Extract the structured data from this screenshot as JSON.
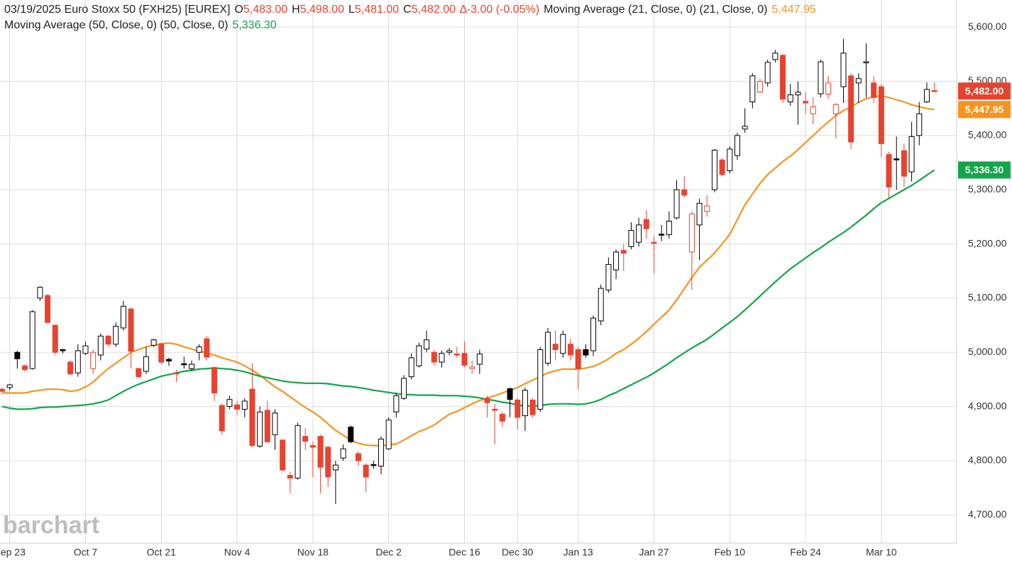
{
  "header": {
    "symbol": "03/19/2025 Euro Stoxx 50 (FXH25) [EUREX]",
    "ohlc": [
      {
        "label": "O",
        "value": "5,483.00"
      },
      {
        "label": "H",
        "value": "5,498.00"
      },
      {
        "label": "L",
        "value": "5,481.00"
      },
      {
        "label": "C",
        "value": "5,482.00"
      }
    ],
    "change": "∆-3.00 (-0.05%)",
    "ma21": {
      "label": "Moving Average (21, Close, 0)  (21, Close, 0)",
      "value": "5,447.95"
    },
    "ma50": {
      "label": "Moving Average (50, Close, 0)  (50, Close, 0)",
      "value": "5,336.30"
    }
  },
  "watermark": "barchart",
  "chart_data": {
    "type": "candlestick",
    "categories": [
      null,
      "Sep 23",
      null,
      null,
      null,
      null,
      null,
      null,
      null,
      null,
      null,
      "Oct 7",
      null,
      null,
      null,
      null,
      null,
      null,
      null,
      null,
      null,
      "Oct 21",
      null,
      null,
      null,
      null,
      null,
      null,
      null,
      null,
      null,
      "Nov 4",
      null,
      null,
      null,
      null,
      null,
      null,
      null,
      null,
      null,
      "Nov 18",
      null,
      null,
      null,
      null,
      null,
      null,
      null,
      null,
      null,
      "Dec 2",
      null,
      null,
      null,
      null,
      null,
      null,
      null,
      null,
      null,
      "Dec 16",
      null,
      null,
      null,
      null,
      null,
      null,
      "Dec 30",
      null,
      null,
      null,
      null,
      null,
      null,
      null,
      "Jan 13",
      null,
      null,
      null,
      null,
      null,
      null,
      null,
      null,
      null,
      "Jan 27",
      null,
      null,
      null,
      null,
      null,
      null,
      null,
      null,
      null,
      "Feb 10",
      null,
      null,
      null,
      null,
      null,
      null,
      null,
      null,
      null,
      "Feb 24",
      null,
      null,
      null,
      null,
      null,
      null,
      null,
      null,
      null,
      "Mar 10",
      null,
      null,
      null,
      null,
      null,
      null,
      null
    ],
    "open": [
      4932,
      4935,
      5000,
      4975,
      4970,
      5100,
      5105,
      5050,
      5005,
      4982,
      4962,
      4998,
      4970,
      4995,
      5030,
      5015,
      5045,
      5080,
      4970,
      4965,
      5013,
      5015,
      4987,
      4962,
      4979,
      4970,
      5000,
      5025,
      4972,
      4902,
      4900,
      4903,
      4895,
      4932,
      4827,
      4893,
      4848,
      4838,
      4773,
      4768,
      4845,
      4828,
      4845,
      4825,
      4783,
      4805,
      4862,
      4813,
      4792,
      4793,
      4790,
      4822,
      4890,
      4915,
      4955,
      4975,
      5006,
      5000,
      4982,
      5000,
      4997,
      4998,
      4970,
      4978,
      4915,
      4895,
      4886,
      4933,
      4912,
      4883,
      4912,
      4895,
      4980,
      5015,
      4998,
      5015,
      5005,
      5005,
      5003,
      5058,
      5115,
      5152,
      5188,
      5195,
      5203,
      5245,
      5203,
      5218,
      5217,
      5248,
      5300,
      5185,
      5235,
      5260,
      5300,
      5355,
      5335,
      5363,
      5412,
      5462,
      5480,
      5497,
      5540,
      5548,
      5462,
      5475,
      5463,
      5440,
      5477,
      5476,
      5440,
      5490,
      5510,
      5497,
      5535,
      5497,
      5490,
      5365,
      5357,
      5372,
      5333,
      5400,
      5462,
      5483
    ],
    "high": [
      4935,
      4942,
      5003,
      4978,
      5078,
      5122,
      5107,
      5052,
      5006,
      4985,
      5015,
      5020,
      5005,
      5035,
      5032,
      5055,
      5095,
      5082,
      4972,
      5010,
      5025,
      5017,
      4990,
      4968,
      4992,
      4985,
      5015,
      5030,
      4974,
      4905,
      4920,
      4910,
      4915,
      4980,
      4900,
      4910,
      4895,
      4840,
      4780,
      4870,
      4860,
      4835,
      4848,
      4828,
      4800,
      4830,
      4865,
      4818,
      4795,
      4800,
      4845,
      4880,
      4925,
      4958,
      4998,
      5018,
      5040,
      5005,
      5003,
      5008,
      5010,
      5020,
      4985,
      5005,
      4920,
      4905,
      4890,
      4935,
      4915,
      4935,
      4915,
      5010,
      5045,
      5040,
      5040,
      5025,
      5010,
      5015,
      5068,
      5125,
      5175,
      5190,
      5200,
      5240,
      5248,
      5262,
      5215,
      5235,
      5260,
      5318,
      5325,
      5260,
      5283,
      5290,
      5375,
      5358,
      5380,
      5405,
      5450,
      5515,
      5505,
      5540,
      5558,
      5550,
      5495,
      5500,
      5480,
      5470,
      5540,
      5510,
      5460,
      5578,
      5515,
      5515,
      5570,
      5510,
      5495,
      5370,
      5398,
      5385,
      5425,
      5462,
      5498,
      5498
    ],
    "low": [
      4925,
      4930,
      4970,
      4965,
      4968,
      5095,
      5053,
      4995,
      4998,
      4958,
      4955,
      4995,
      4960,
      4985,
      5010,
      5010,
      5040,
      4970,
      4953,
      4960,
      5010,
      4978,
      4975,
      4945,
      4970,
      4965,
      4985,
      4985,
      4910,
      4848,
      4895,
      4885,
      4880,
      4825,
      4824,
      4833,
      4820,
      4780,
      4740,
      4765,
      4820,
      4770,
      4740,
      4752,
      4720,
      4800,
      4832,
      4790,
      4742,
      4785,
      4775,
      4820,
      4880,
      4912,
      4950,
      4972,
      5000,
      4975,
      4972,
      4995,
      4990,
      4972,
      4960,
      4960,
      4880,
      4830,
      4862,
      4880,
      4858,
      4855,
      4880,
      4890,
      4975,
      4985,
      4990,
      4985,
      4932,
      4990,
      4993,
      5050,
      5110,
      5135,
      5150,
      5190,
      5195,
      5210,
      5145,
      5205,
      5210,
      5245,
      5285,
      5115,
      5170,
      5250,
      5295,
      5325,
      5330,
      5355,
      5405,
      5450,
      5478,
      5490,
      5535,
      5460,
      5455,
      5420,
      5440,
      5420,
      5470,
      5468,
      5395,
      5460,
      5375,
      5460,
      5470,
      5460,
      5360,
      5285,
      5300,
      5305,
      5315,
      5382,
      5460,
      5481
    ],
    "close": [
      4928,
      4940,
      4988,
      4968,
      5075,
      5120,
      5055,
      5000,
      5003,
      4960,
      5003,
      5012,
      5000,
      5030,
      5015,
      5048,
      5085,
      5002,
      4955,
      4992,
      5023,
      4982,
      4984,
      4960,
      4977,
      4978,
      5010,
      4991,
      4925,
      4855,
      4913,
      4895,
      4910,
      4828,
      4890,
      4835,
      4888,
      4783,
      4768,
      4865,
      4836,
      4825,
      4788,
      4770,
      4792,
      4822,
      4835,
      4800,
      4770,
      4792,
      4840,
      4875,
      4920,
      4952,
      4990,
      5012,
      5023,
      4982,
      4998,
      5003,
      4995,
      4976,
      4973,
      4997,
      4907,
      4893,
      4873,
      4913,
      4880,
      4930,
      4885,
      5005,
      5037,
      5005,
      5033,
      4995,
      4970,
      4995,
      5063,
      5118,
      5162,
      5185,
      5183,
      5225,
      5235,
      5228,
      5202,
      5217,
      5242,
      5300,
      5290,
      5255,
      5275,
      5270,
      5373,
      5328,
      5375,
      5400,
      5417,
      5510,
      5500,
      5535,
      5552,
      5467,
      5475,
      5480,
      5460,
      5453,
      5536,
      5497,
      5457,
      5552,
      5388,
      5505,
      5536,
      5470,
      5385,
      5305,
      5355,
      5325,
      5398,
      5440,
      5485,
      5482
    ],
    "last_label": "5,482.00",
    "up_color": "#000000",
    "down_color": "#e8432e",
    "series": [
      {
        "name": "Moving Average (21, Close, 0)",
        "color": "#f7931e",
        "last_label": "5,447.95",
        "values": [
          4925,
          4925,
          4925,
          4925,
          4928,
          4930,
          4932,
          4932,
          4931,
          4928,
          4930,
          4936,
          4945,
          4958,
          4970,
          4980,
          4990,
          5000,
          5005,
          5010,
          5013,
          5016,
          5017,
          5015,
          5010,
          5006,
          5002,
          4999,
          4995,
          4990,
          4986,
          4982,
          4975,
          4967,
          4958,
          4947,
          4936,
          4928,
          4918,
          4908,
          4898,
          4890,
          4880,
          4868,
          4856,
          4847,
          4838,
          4832,
          4829,
          4828,
          4828,
          4829,
          4831,
          4838,
          4846,
          4854,
          4859,
          4866,
          4876,
          4886,
          4891,
          4898,
          4905,
          4911,
          4916,
          4920,
          4925,
          4930,
          4935,
          4942,
          4949,
          4955,
          4962,
          4966,
          4969,
          4969,
          4969,
          4971,
          4974,
          4980,
          4988,
          4998,
          5005,
          5015,
          5026,
          5038,
          5052,
          5065,
          5078,
          5097,
          5117,
          5138,
          5157,
          5170,
          5183,
          5200,
          5218,
          5245,
          5272,
          5292,
          5312,
          5328,
          5340,
          5352,
          5362,
          5374,
          5387,
          5400,
          5413,
          5425,
          5437,
          5446,
          5453,
          5461,
          5468,
          5472,
          5473,
          5470,
          5466,
          5462,
          5457,
          5453,
          5450,
          5447.95
        ]
      },
      {
        "name": "Moving Average (50, Close, 0)",
        "color": "#12a54a",
        "last_label": "5,336.30",
        "values": [
          4900,
          4897,
          4895,
          4895,
          4896,
          4898,
          4899,
          4899,
          4900,
          4901,
          4902,
          4903,
          4905,
          4908,
          4912,
          4920,
          4928,
          4935,
          4941,
          4946,
          4951,
          4956,
          4959,
          4962,
          4965,
          4967,
          4969,
          4970,
          4971,
          4970,
          4969,
          4967,
          4964,
          4960,
          4956,
          4953,
          4950,
          4947,
          4945,
          4944,
          4943,
          4943,
          4943,
          4942,
          4940,
          4938,
          4937,
          4935,
          4933,
          4930,
          4928,
          4926,
          4924,
          4922,
          4922,
          4921,
          4921,
          4921,
          4920,
          4920,
          4920,
          4919,
          4918,
          4916,
          4913,
          4911,
          4908,
          4906,
          4903,
          4901,
          4901,
          4902,
          4904,
          4905,
          4905,
          4905,
          4904,
          4905,
          4908,
          4913,
          4920,
          4926,
          4933,
          4940,
          4947,
          4954,
          4962,
          4971,
          4980,
          4990,
          4999,
          5008,
          5016,
          5024,
          5034,
          5045,
          5055,
          5066,
          5078,
          5091,
          5104,
          5117,
          5130,
          5142,
          5154,
          5164,
          5174,
          5184,
          5193,
          5203,
          5212,
          5221,
          5231,
          5242,
          5253,
          5265,
          5276,
          5284,
          5292,
          5300,
          5308,
          5317,
          5327,
          5336.3
        ]
      }
    ],
    "ylim": [
      4648,
      5650
    ],
    "yticks": [
      {
        "value": 4700,
        "label": "4,700.00"
      },
      {
        "value": 4800,
        "label": "4,800.00"
      },
      {
        "value": 4900,
        "label": "4,900.00"
      },
      {
        "value": 5000,
        "label": "5,000.00"
      },
      {
        "value": 5100,
        "label": "5,100.00"
      },
      {
        "value": 5200,
        "label": "5,200.00"
      },
      {
        "value": 5300,
        "label": "5,300.00"
      },
      {
        "value": 5400,
        "label": "5,400.00"
      },
      {
        "value": 5500,
        "label": "5,500.00"
      },
      {
        "value": 5600,
        "label": "5,600.00"
      }
    ],
    "grid": true
  }
}
